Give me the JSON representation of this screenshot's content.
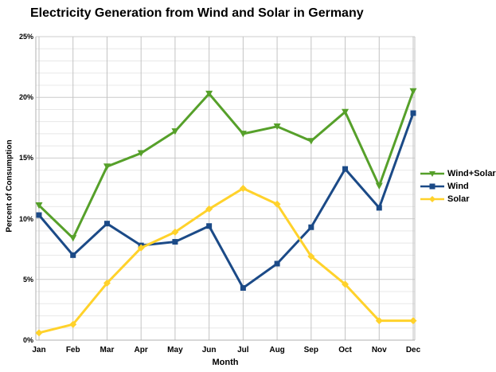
{
  "title": "Electricity Generation from Wind and Solar in Germany",
  "chart_data": {
    "type": "line",
    "categories": [
      "Jan",
      "Feb",
      "Mar",
      "Apr",
      "May",
      "Jun",
      "Jul",
      "Aug",
      "Sep",
      "Oct",
      "Nov",
      "Dec"
    ],
    "series": [
      {
        "name": "Wind+Solar",
        "color": "#56a02a",
        "marker": "triangle-down",
        "values": [
          11.1,
          8.4,
          14.3,
          15.4,
          17.2,
          20.3,
          17.0,
          17.6,
          16.4,
          18.8,
          12.7,
          20.5
        ]
      },
      {
        "name": "Wind",
        "color": "#1b4a87",
        "marker": "square",
        "values": [
          10.3,
          7.0,
          9.6,
          7.8,
          8.1,
          9.4,
          4.3,
          6.3,
          9.3,
          14.1,
          10.9,
          18.7
        ]
      },
      {
        "name": "Solar",
        "color": "#ffd22b",
        "marker": "diamond",
        "values": [
          0.6,
          1.3,
          4.7,
          7.6,
          8.9,
          10.8,
          12.5,
          11.2,
          6.9,
          4.6,
          1.6,
          1.6
        ]
      }
    ],
    "title": "Electricity Generation from Wind and Solar in Germany",
    "xlabel": "Month",
    "ylabel": "Percent of Consumption",
    "ylim": [
      0,
      25
    ],
    "y_tick_labels": [
      "0%",
      "5%",
      "10%",
      "15%",
      "20%",
      "25%"
    ],
    "y_major_step": 5,
    "y_minor_step": 1,
    "grid": true,
    "legend_position": "middle-right"
  },
  "colors": {
    "background": "#ffffff",
    "text": "#000000",
    "grid_major": "#cccccc",
    "grid_minor": "#e8e8e8",
    "grid_vertical": "#c3c3c3",
    "axis": "#b0b0b0"
  }
}
